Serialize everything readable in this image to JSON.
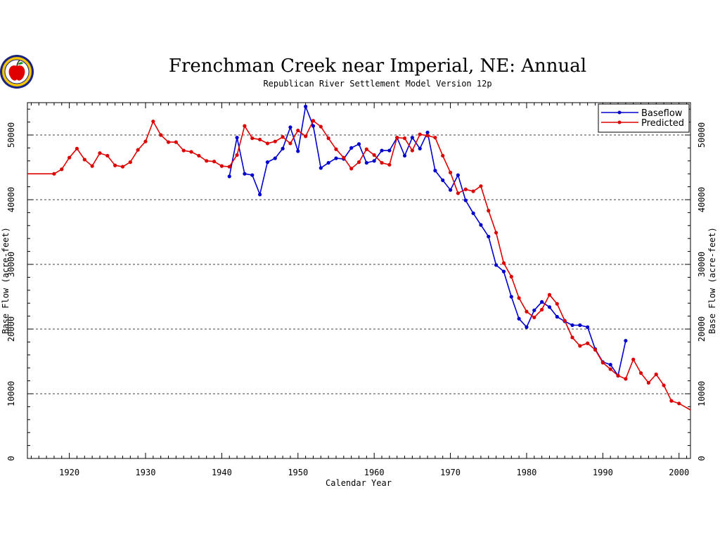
{
  "logo": {
    "name": "apple-seal-logo"
  },
  "chart_data": {
    "type": "line",
    "title": "Frenchman Creek near Imperial, NE: Annual",
    "subtitle": "Republican River Settlement Model Version 12p",
    "xlabel": "Calendar Year",
    "ylabel": "Base Flow (acre-feet)",
    "xlim": [
      1914.5,
      2001.5
    ],
    "ylim": [
      0,
      55000
    ],
    "xticks": [
      1920,
      1930,
      1940,
      1950,
      1960,
      1970,
      1980,
      1990,
      2000
    ],
    "xtick_labels": [
      "1920",
      "1930",
      "1940",
      "1950",
      "1960",
      "1970",
      "1980",
      "1990",
      "2000"
    ],
    "yticks": [
      0,
      10000,
      20000,
      30000,
      40000,
      50000
    ],
    "ytick_labels": [
      "0",
      "10000",
      "20000",
      "30000",
      "40000",
      "50000"
    ],
    "gridlines": "dashed horizontal at y ticks",
    "legend_position": "top-right",
    "series": [
      {
        "name": "Baseflow",
        "color": "#0000cc",
        "x": [
          1941,
          1942,
          1943,
          1944,
          1945,
          1946,
          1947,
          1948,
          1949,
          1950,
          1951,
          1952,
          1953,
          1954,
          1955,
          1956,
          1957,
          1958,
          1959,
          1960,
          1961,
          1962,
          1963,
          1964,
          1965,
          1966,
          1967,
          1968,
          1969,
          1970,
          1971,
          1972,
          1973,
          1974,
          1975,
          1976,
          1977,
          1978,
          1979,
          1980,
          1981,
          1982,
          1983,
          1984,
          1985,
          1986,
          1987,
          1988,
          1989,
          1990,
          1991,
          1992,
          1993
        ],
        "values": [
          43600,
          49600,
          44000,
          43800,
          40800,
          45800,
          46400,
          47900,
          51200,
          47500,
          54400,
          51400,
          44900,
          45700,
          46400,
          46300,
          48000,
          48600,
          45700,
          46000,
          47600,
          47600,
          49600,
          46800,
          49600,
          47900,
          50400,
          44500,
          43000,
          41500,
          43800,
          39900,
          37900,
          36100,
          34300,
          29900,
          28900,
          25000,
          21600,
          20300,
          22900,
          24200,
          23400,
          21900,
          21200,
          20600,
          20600,
          20300,
          16900,
          14900,
          14500,
          12800,
          18200
        ]
      },
      {
        "name": "Predicted",
        "color": "#dd0000",
        "x": [
          1914.5,
          1918,
          1919,
          1920,
          1921,
          1922,
          1923,
          1924,
          1925,
          1926,
          1927,
          1928,
          1929,
          1930,
          1931,
          1932,
          1933,
          1934,
          1935,
          1936,
          1937,
          1938,
          1939,
          1940,
          1941,
          1942,
          1943,
          1944,
          1945,
          1946,
          1947,
          1948,
          1949,
          1950,
          1951,
          1952,
          1953,
          1954,
          1955,
          1956,
          1957,
          1958,
          1959,
          1960,
          1961,
          1962,
          1963,
          1964,
          1965,
          1966,
          1967,
          1968,
          1969,
          1970,
          1971,
          1972,
          1973,
          1974,
          1975,
          1976,
          1977,
          1978,
          1979,
          1980,
          1981,
          1982,
          1983,
          1984,
          1985,
          1986,
          1987,
          1988,
          1989,
          1990,
          1991,
          1992,
          1993,
          1994,
          1995,
          1996,
          1997,
          1998,
          1999,
          2000,
          2001.5
        ],
        "values": [
          44000,
          44000,
          44700,
          46500,
          47900,
          46200,
          45200,
          47200,
          46800,
          45300,
          45100,
          45800,
          47700,
          49000,
          52100,
          50000,
          48900,
          48900,
          47600,
          47400,
          46800,
          46000,
          45900,
          45200,
          45100,
          46900,
          51400,
          49500,
          49300,
          48700,
          49000,
          49700,
          48700,
          50700,
          49800,
          52200,
          51300,
          49500,
          47800,
          46500,
          44800,
          45800,
          47800,
          46900,
          45700,
          45400,
          49600,
          49500,
          47600,
          50100,
          49900,
          49600,
          46800,
          44200,
          41000,
          41600,
          41300,
          42100,
          38300,
          34900,
          30200,
          28100,
          24800,
          22700,
          21800,
          23000,
          25300,
          23900,
          21300,
          18700,
          17400,
          17800,
          16800,
          14800,
          13800,
          12800,
          12300,
          15300,
          13200,
          11700,
          13000,
          11300,
          8900,
          8500,
          7500
        ]
      }
    ]
  }
}
